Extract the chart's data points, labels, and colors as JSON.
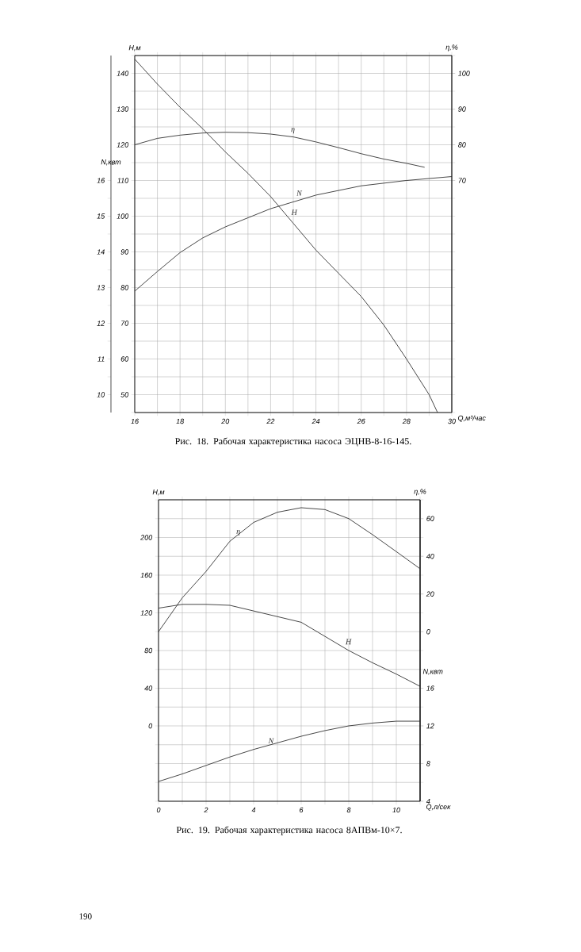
{
  "chart_data": [
    {
      "type": "line",
      "title": "Рис. 18. Рабочая характеристика насоса ЭЦНВ-8-16-145.",
      "xlabel": "Q,м³/час",
      "ylabel": "H,м",
      "y2label": "N,квт",
      "y3label": "η,%",
      "xlim": [
        16,
        30
      ],
      "xticks": [
        16,
        {
          "value": 17,
          "label": null
        },
        18,
        {
          "value": 19,
          "label": null
        },
        20,
        {
          "value": 21,
          "label": null
        },
        22,
        {
          "value": 23,
          "label": null
        },
        24,
        {
          "value": 25,
          "label": null
        },
        26,
        {
          "value": 27,
          "label": null
        },
        28,
        {
          "value": 29,
          "label": null
        },
        30
      ],
      "ylim": [
        45,
        145
      ],
      "yticks": [
        {
          "value": 45,
          "label": null
        },
        50,
        {
          "value": 55,
          "label": null
        },
        60,
        {
          "value": 65,
          "label": null
        },
        70,
        {
          "value": 75,
          "label": null
        },
        80,
        {
          "value": 85,
          "label": null
        },
        90,
        {
          "value": 95,
          "label": null
        },
        100,
        {
          "value": 105,
          "label": null
        },
        110,
        {
          "value": 115,
          "label": null
        },
        120,
        {
          "value": 125,
          "label": null
        },
        130,
        {
          "value": 135,
          "label": null
        },
        140,
        {
          "value": 145,
          "label": null
        }
      ],
      "y2lim": [
        9.5,
        19.5
      ],
      "y2ticks": [
        10,
        {
          "value": 10.5,
          "label": null
        },
        11,
        {
          "value": 11.5,
          "label": null
        },
        12,
        {
          "value": 12.5,
          "label": null
        },
        13,
        {
          "value": 13.5,
          "label": null
        },
        14,
        {
          "value": 14.5,
          "label": null
        },
        15,
        {
          "value": 15.5,
          "label": null
        },
        16
      ],
      "y3lim": [
        5,
        105
      ],
      "y3ticks": [
        70,
        80,
        90,
        100
      ],
      "grid": true,
      "series": [
        {
          "name": "H",
          "color": "#333333",
          "axis": "y",
          "x": [
            16,
            17,
            18,
            19,
            20,
            21,
            22,
            23,
            24,
            25,
            26,
            27,
            28,
            29,
            29.37
          ],
          "values": [
            144,
            137,
            130.5,
            124.5,
            118,
            112,
            105.5,
            98,
            90.5,
            84,
            77.5,
            69.5,
            60,
            50,
            45
          ]
        },
        {
          "name": "N",
          "color": "#333333",
          "axis": "y2",
          "x": [
            16,
            17,
            18,
            19,
            20,
            22,
            24,
            26,
            28,
            30
          ],
          "values": [
            12.9,
            13.45,
            13.98,
            14.39,
            14.7,
            15.21,
            15.59,
            15.85,
            16.0,
            16.11
          ]
        },
        {
          "name": "η",
          "color": "#333333",
          "axis": "y3",
          "x": [
            16,
            17,
            18,
            19,
            20,
            21,
            22,
            23,
            24,
            25,
            26,
            27,
            28,
            28.8
          ],
          "values": [
            80,
            81.8,
            82.7,
            83.3,
            83.5,
            83.4,
            83,
            82.2,
            80.8,
            79.2,
            77.5,
            76,
            74.8,
            73.7
          ]
        }
      ],
      "annotations": [
        "190"
      ]
    },
    {
      "type": "line",
      "title": "Рис. 19. Рабочая характеристика насоса 8АПВм-10×7.",
      "xlabel": "Q,л/сек",
      "ylabel": "H,м",
      "y2label": "N,квт",
      "y3label": "η,%",
      "xlim": [
        0,
        11
      ],
      "xticks": [
        0,
        {
          "value": 1,
          "label": null
        },
        2,
        {
          "value": 3,
          "label": null
        },
        4,
        {
          "value": 5,
          "label": null
        },
        6,
        {
          "value": 7,
          "label": null
        },
        8,
        {
          "value": 9,
          "label": null
        },
        10,
        {
          "value": 11,
          "label": null
        }
      ],
      "ylim": [
        -80,
        240
      ],
      "yticks": [
        {
          "value": -80,
          "label": null
        },
        {
          "value": -60,
          "label": null
        },
        {
          "value": -40,
          "label": null
        },
        {
          "value": -20,
          "label": null
        },
        0,
        {
          "value": 20,
          "label": null
        },
        40,
        {
          "value": 60,
          "label": null
        },
        80,
        {
          "value": 100,
          "label": null
        },
        120,
        {
          "value": 140,
          "label": null
        },
        160,
        {
          "value": 180,
          "label": null
        },
        200,
        {
          "value": 220,
          "label": null
        },
        {
          "value": 240,
          "label": null
        }
      ],
      "y2lim": [
        4,
        36
      ],
      "y2ticks": [
        4,
        8,
        12,
        16
      ],
      "y3lim": [
        -90,
        70
      ],
      "y3ticks": [
        0,
        20,
        40,
        60
      ],
      "grid": true,
      "series": [
        {
          "name": "H",
          "color": "#333333",
          "axis": "y",
          "x": [
            0,
            1,
            2,
            3,
            4,
            5,
            6,
            7,
            8,
            9,
            10,
            11
          ],
          "values": [
            125,
            129,
            129,
            128,
            122,
            116,
            110,
            95,
            80,
            67,
            55,
            42
          ]
        },
        {
          "name": "N",
          "color": "#333333",
          "axis": "y2",
          "x": [
            0,
            1,
            2,
            3,
            4,
            5,
            6,
            7,
            8,
            9,
            10,
            11
          ],
          "values": [
            6.1,
            6.9,
            7.8,
            8.7,
            9.5,
            10.2,
            10.9,
            11.5,
            12.0,
            12.3,
            12.5,
            12.5
          ]
        },
        {
          "name": "η",
          "color": "#333333",
          "axis": "y3",
          "x": [
            0,
            1,
            2,
            3,
            4,
            5,
            6,
            7,
            8,
            9,
            10,
            11
          ],
          "values": [
            0,
            18,
            32,
            48,
            58,
            63.4,
            65.8,
            64.8,
            60,
            51.5,
            42.5,
            33.4
          ]
        }
      ]
    }
  ]
}
